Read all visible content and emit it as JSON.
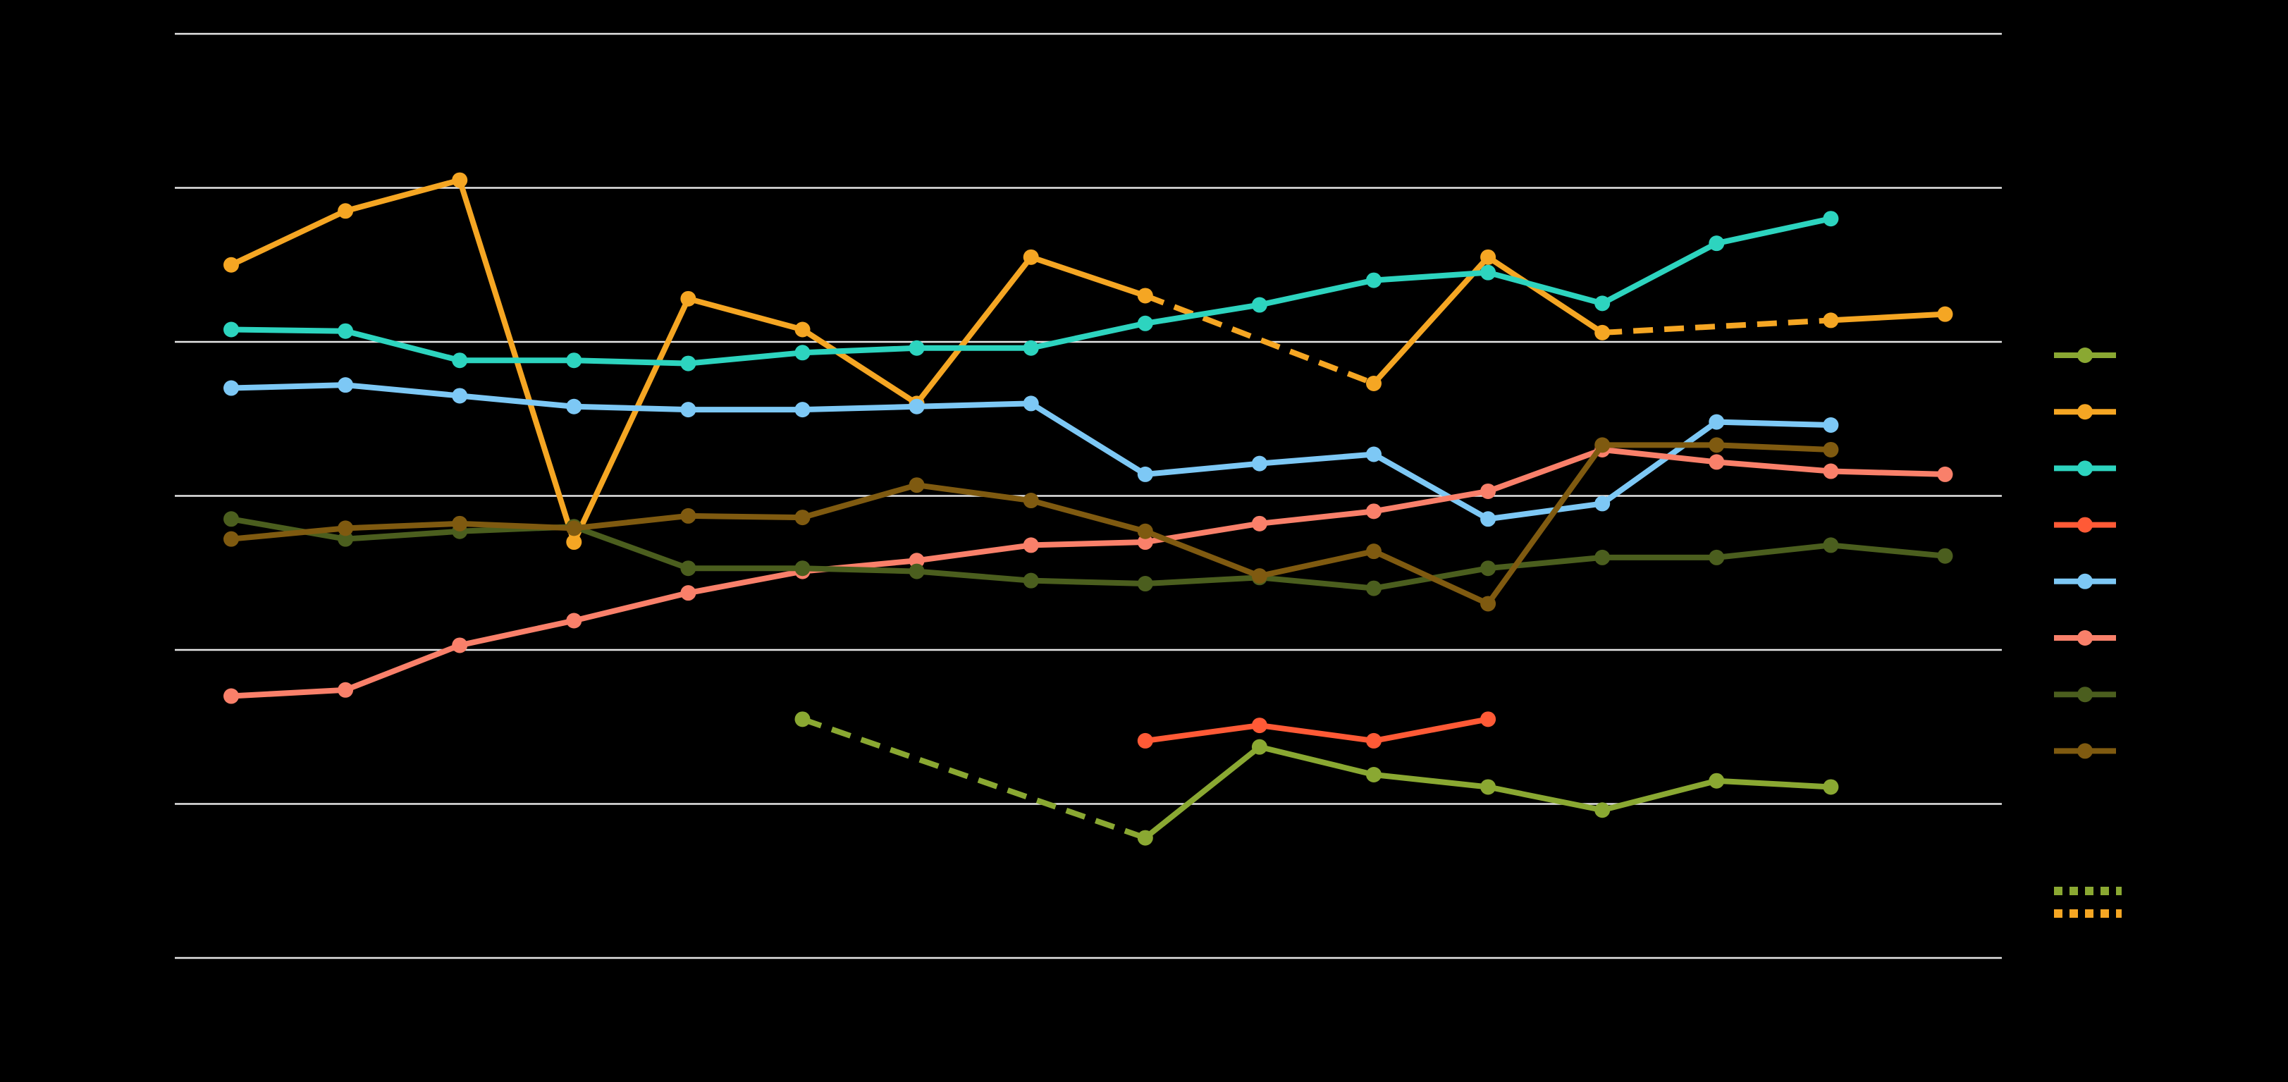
{
  "chart_data": {
    "type": "line",
    "title": "",
    "xlabel": "",
    "ylabel": "",
    "grid": true,
    "legend_position": "right",
    "x": [
      0,
      1,
      2,
      3,
      4,
      5,
      6,
      7,
      8,
      9,
      10,
      11,
      12,
      13,
      14,
      15
    ],
    "ylim": [
      0,
      6
    ],
    "gridlines": [
      0,
      1,
      2,
      3,
      4,
      5,
      6
    ],
    "series": [
      {
        "color": "#8aa832",
        "values": [
          null,
          null,
          null,
          null,
          null,
          1.55,
          null,
          null,
          0.78,
          1.37,
          1.19,
          1.11,
          0.96,
          1.15,
          1.11,
          null
        ],
        "dashed_segments": [
          [
            5,
            8
          ]
        ]
      },
      {
        "color": "#f5a623",
        "values": [
          4.5,
          4.85,
          5.05,
          2.7,
          4.28,
          4.08,
          3.6,
          4.55,
          4.3,
          null,
          3.73,
          4.55,
          4.06,
          null,
          4.14,
          4.18
        ],
        "dashed_segments": [
          [
            8,
            10
          ],
          [
            12,
            14
          ]
        ]
      },
      {
        "color": "#2dd4bf",
        "values": [
          4.08,
          4.07,
          3.88,
          3.88,
          3.86,
          3.93,
          3.96,
          3.96,
          4.12,
          4.24,
          4.4,
          4.45,
          4.25,
          4.64,
          4.8,
          null
        ],
        "dashed_segments": []
      },
      {
        "color": "#ff5a36",
        "values": [
          null,
          null,
          null,
          null,
          null,
          null,
          null,
          null,
          1.41,
          1.51,
          1.41,
          1.55,
          null,
          null,
          null,
          null
        ],
        "dashed_segments": []
      },
      {
        "color": "#7dc8f5",
        "values": [
          3.7,
          3.72,
          3.65,
          3.58,
          3.56,
          3.56,
          3.58,
          3.6,
          3.14,
          3.21,
          3.27,
          2.85,
          2.95,
          3.48,
          3.46,
          null
        ],
        "dashed_segments": []
      },
      {
        "color": "#f9806a",
        "values": [
          1.7,
          1.74,
          2.03,
          2.19,
          2.37,
          2.51,
          2.58,
          2.68,
          2.7,
          2.82,
          2.9,
          3.03,
          3.3,
          3.22,
          3.16,
          3.14
        ],
        "dashed_segments": []
      },
      {
        "color": "#4b5e1e",
        "values": [
          2.85,
          2.72,
          2.77,
          2.8,
          2.53,
          2.53,
          2.51,
          2.45,
          2.43,
          2.47,
          2.4,
          2.53,
          2.6,
          2.6,
          2.68,
          2.61
        ],
        "dashed_segments": []
      },
      {
        "color": "#7f5a10",
        "values": [
          2.72,
          2.79,
          2.82,
          2.79,
          2.87,
          2.86,
          3.07,
          2.97,
          2.77,
          2.48,
          2.64,
          2.3,
          3.33,
          3.33,
          3.3,
          null
        ],
        "dashed_segments": []
      }
    ],
    "legend_extra": [
      {
        "color": "#8aa832",
        "style": "dotted"
      },
      {
        "color": "#f5a623",
        "style": "dotted"
      }
    ]
  }
}
